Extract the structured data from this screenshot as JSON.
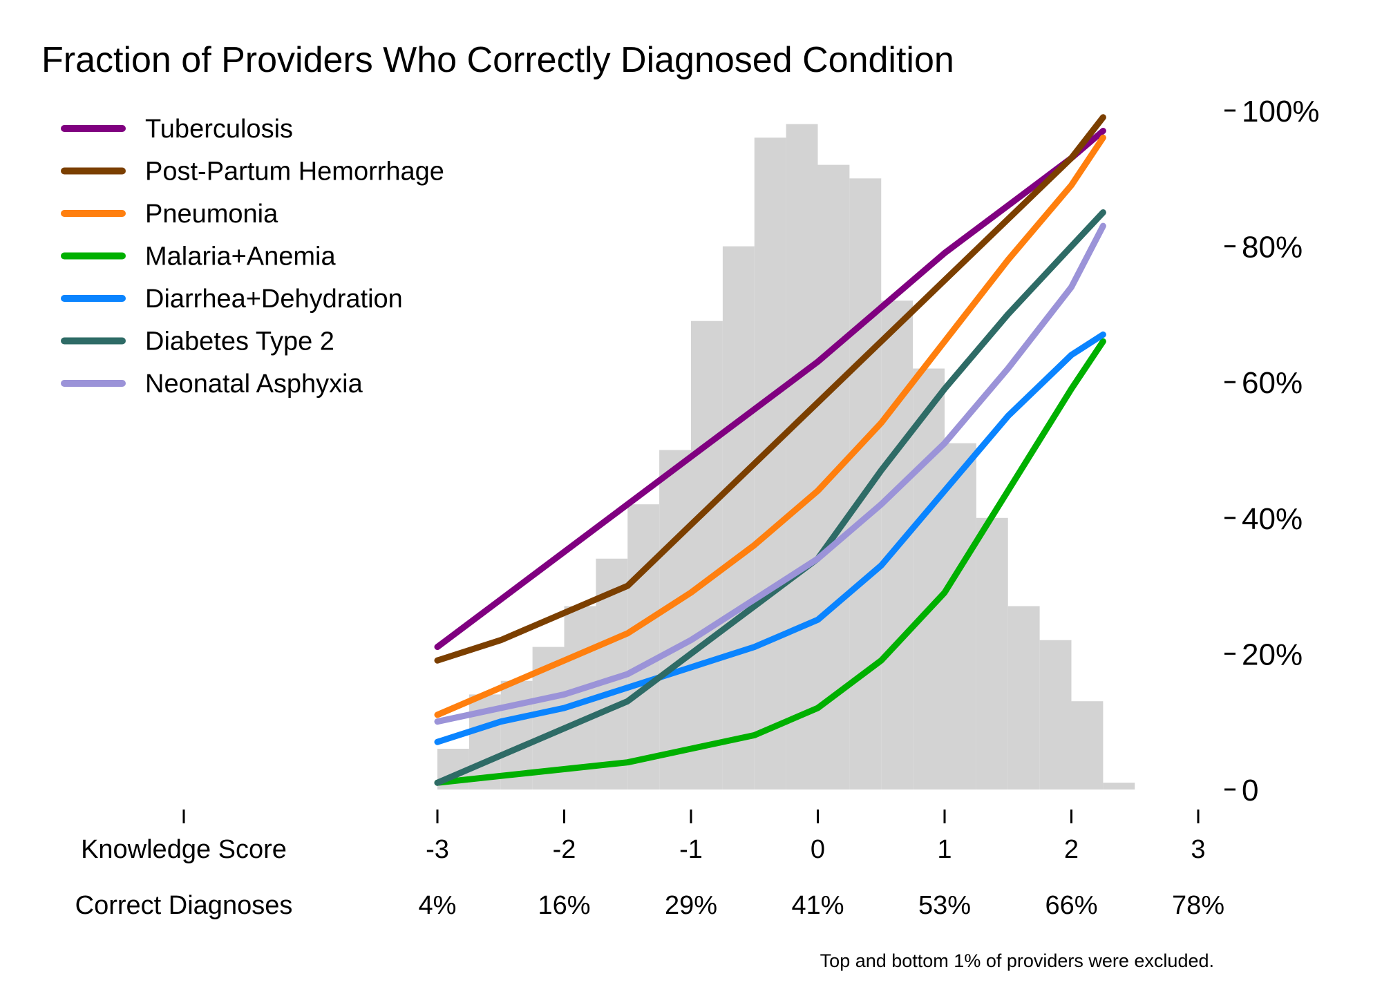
{
  "chart_data": {
    "type": "line",
    "title": "Fraction of Providers Who Correctly Diagnosed Condition",
    "footnote": "Top and bottom 1% of providers were excluded.",
    "x_axis": {
      "row_label": "Knowledge Score",
      "ticks": [
        -3,
        -2,
        -1,
        0,
        1,
        2,
        3
      ],
      "tick_labels": [
        "-3",
        "-2",
        "-1",
        "0",
        "1",
        "2",
        "3"
      ],
      "xlim": [
        -5,
        3
      ],
      "secondary_row_label": "Correct Diagnoses",
      "secondary_tick_labels": [
        "4%",
        "16%",
        "29%",
        "41%",
        "53%",
        "66%",
        "78%"
      ]
    },
    "y_axis": {
      "position": "right",
      "ylim": [
        0,
        100
      ],
      "ticks": [
        0,
        20,
        40,
        60,
        80,
        100
      ],
      "tick_labels": [
        "0",
        "20%",
        "40%",
        "60%",
        "80%",
        "100%"
      ]
    },
    "grid": false,
    "legend": {
      "placement": "top-left"
    },
    "histogram": {
      "color": "#d3d3d3",
      "bin_edges": [
        -3.0,
        -2.75,
        -2.5,
        -2.25,
        -2.0,
        -1.75,
        -1.5,
        -1.25,
        -1.0,
        -0.75,
        -0.5,
        -0.25,
        0.0,
        0.25,
        0.5,
        0.75,
        1.0,
        1.25,
        1.5,
        1.75,
        2.0,
        2.25,
        2.5
      ],
      "heights": [
        6,
        14,
        16,
        21,
        27,
        34,
        42,
        50,
        69,
        80,
        96,
        98,
        92,
        90,
        72,
        62,
        51,
        40,
        27,
        22,
        13,
        1
      ]
    },
    "series": [
      {
        "name": "Tuberculosis",
        "color": "#800080",
        "x": [
          -3.0,
          -2.5,
          -2.0,
          -1.5,
          -1.0,
          -0.5,
          0.0,
          0.5,
          1.0,
          1.5,
          2.0,
          2.25
        ],
        "y": [
          21,
          28,
          35,
          42,
          49,
          56,
          63,
          71,
          79,
          86,
          93,
          97
        ]
      },
      {
        "name": "Post-Partum Hemorrhage",
        "color": "#7b3f00",
        "x": [
          -3.0,
          -2.5,
          -2.0,
          -1.5,
          -1.0,
          -0.5,
          0.0,
          0.5,
          1.0,
          1.5,
          2.0,
          2.25
        ],
        "y": [
          19,
          22,
          26,
          30,
          39,
          48,
          57,
          66,
          75,
          84,
          93,
          99
        ]
      },
      {
        "name": "Pneumonia",
        "color": "#ff7f0e",
        "x": [
          -3.0,
          -2.5,
          -2.0,
          -1.5,
          -1.0,
          -0.5,
          0.0,
          0.5,
          1.0,
          1.5,
          2.0,
          2.25
        ],
        "y": [
          11,
          15,
          19,
          23,
          29,
          36,
          44,
          54,
          66,
          78,
          89,
          96
        ]
      },
      {
        "name": "Malaria+Anemia",
        "color": "#00b000",
        "x": [
          -3.0,
          -2.5,
          -2.0,
          -1.5,
          -1.0,
          -0.5,
          0.0,
          0.5,
          1.0,
          1.5,
          2.0,
          2.25
        ],
        "y": [
          1,
          2,
          3,
          4,
          6,
          8,
          12,
          19,
          29,
          44,
          59,
          66
        ]
      },
      {
        "name": "Diarrhea+Dehydration",
        "color": "#0a84ff",
        "x": [
          -3.0,
          -2.5,
          -2.0,
          -1.5,
          -1.0,
          -0.5,
          0.0,
          0.5,
          1.0,
          1.5,
          2.0,
          2.25
        ],
        "y": [
          7,
          10,
          12,
          15,
          18,
          21,
          25,
          33,
          44,
          55,
          64,
          67
        ]
      },
      {
        "name": "Diabetes Type 2",
        "color": "#2e6b66",
        "x": [
          -3.0,
          -2.5,
          -2.0,
          -1.5,
          -1.0,
          -0.5,
          0.0,
          0.5,
          1.0,
          1.5,
          2.0,
          2.25
        ],
        "y": [
          1,
          5,
          9,
          13,
          20,
          27,
          34,
          47,
          59,
          70,
          80,
          85
        ]
      },
      {
        "name": "Neonatal Asphyxia",
        "color": "#9b93d8",
        "x": [
          -3.0,
          -2.5,
          -2.0,
          -1.5,
          -1.0,
          -0.5,
          0.0,
          0.5,
          1.0,
          1.5,
          2.0,
          2.25
        ],
        "y": [
          10,
          12,
          14,
          17,
          22,
          28,
          34,
          42,
          51,
          62,
          74,
          83
        ]
      }
    ]
  }
}
